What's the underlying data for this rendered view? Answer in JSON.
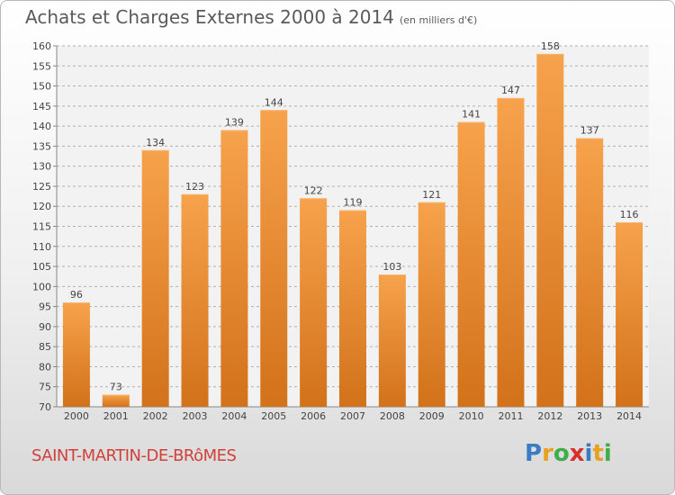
{
  "header": {
    "title": "Achats et Charges Externes 2000 à 2014",
    "unit": "(en milliers d'€)"
  },
  "footer": {
    "commune": "SAINT-MARTIN-DE-BRôMES",
    "brand_letters": [
      "P",
      "r",
      "o",
      "x",
      "i",
      "t",
      "i"
    ],
    "brand_colors": [
      "#3a7cc4",
      "#e8a020",
      "#3fae49",
      "#d7302a",
      "#3a7cc4",
      "#e8a020",
      "#3fae49"
    ]
  },
  "chart_data": {
    "type": "bar",
    "categories": [
      "2000",
      "2001",
      "2002",
      "2003",
      "2004",
      "2005",
      "2006",
      "2007",
      "2008",
      "2009",
      "2010",
      "2011",
      "2012",
      "2013",
      "2014"
    ],
    "values": [
      96,
      73,
      134,
      123,
      139,
      144,
      122,
      119,
      103,
      121,
      141,
      147,
      158,
      137,
      116
    ],
    "ylim": [
      70,
      160
    ],
    "yticks": [
      70,
      75,
      80,
      85,
      90,
      95,
      100,
      105,
      110,
      115,
      120,
      125,
      130,
      135,
      140,
      145,
      150,
      155,
      160
    ],
    "grid": true,
    "bar_color": "#f0923a"
  }
}
